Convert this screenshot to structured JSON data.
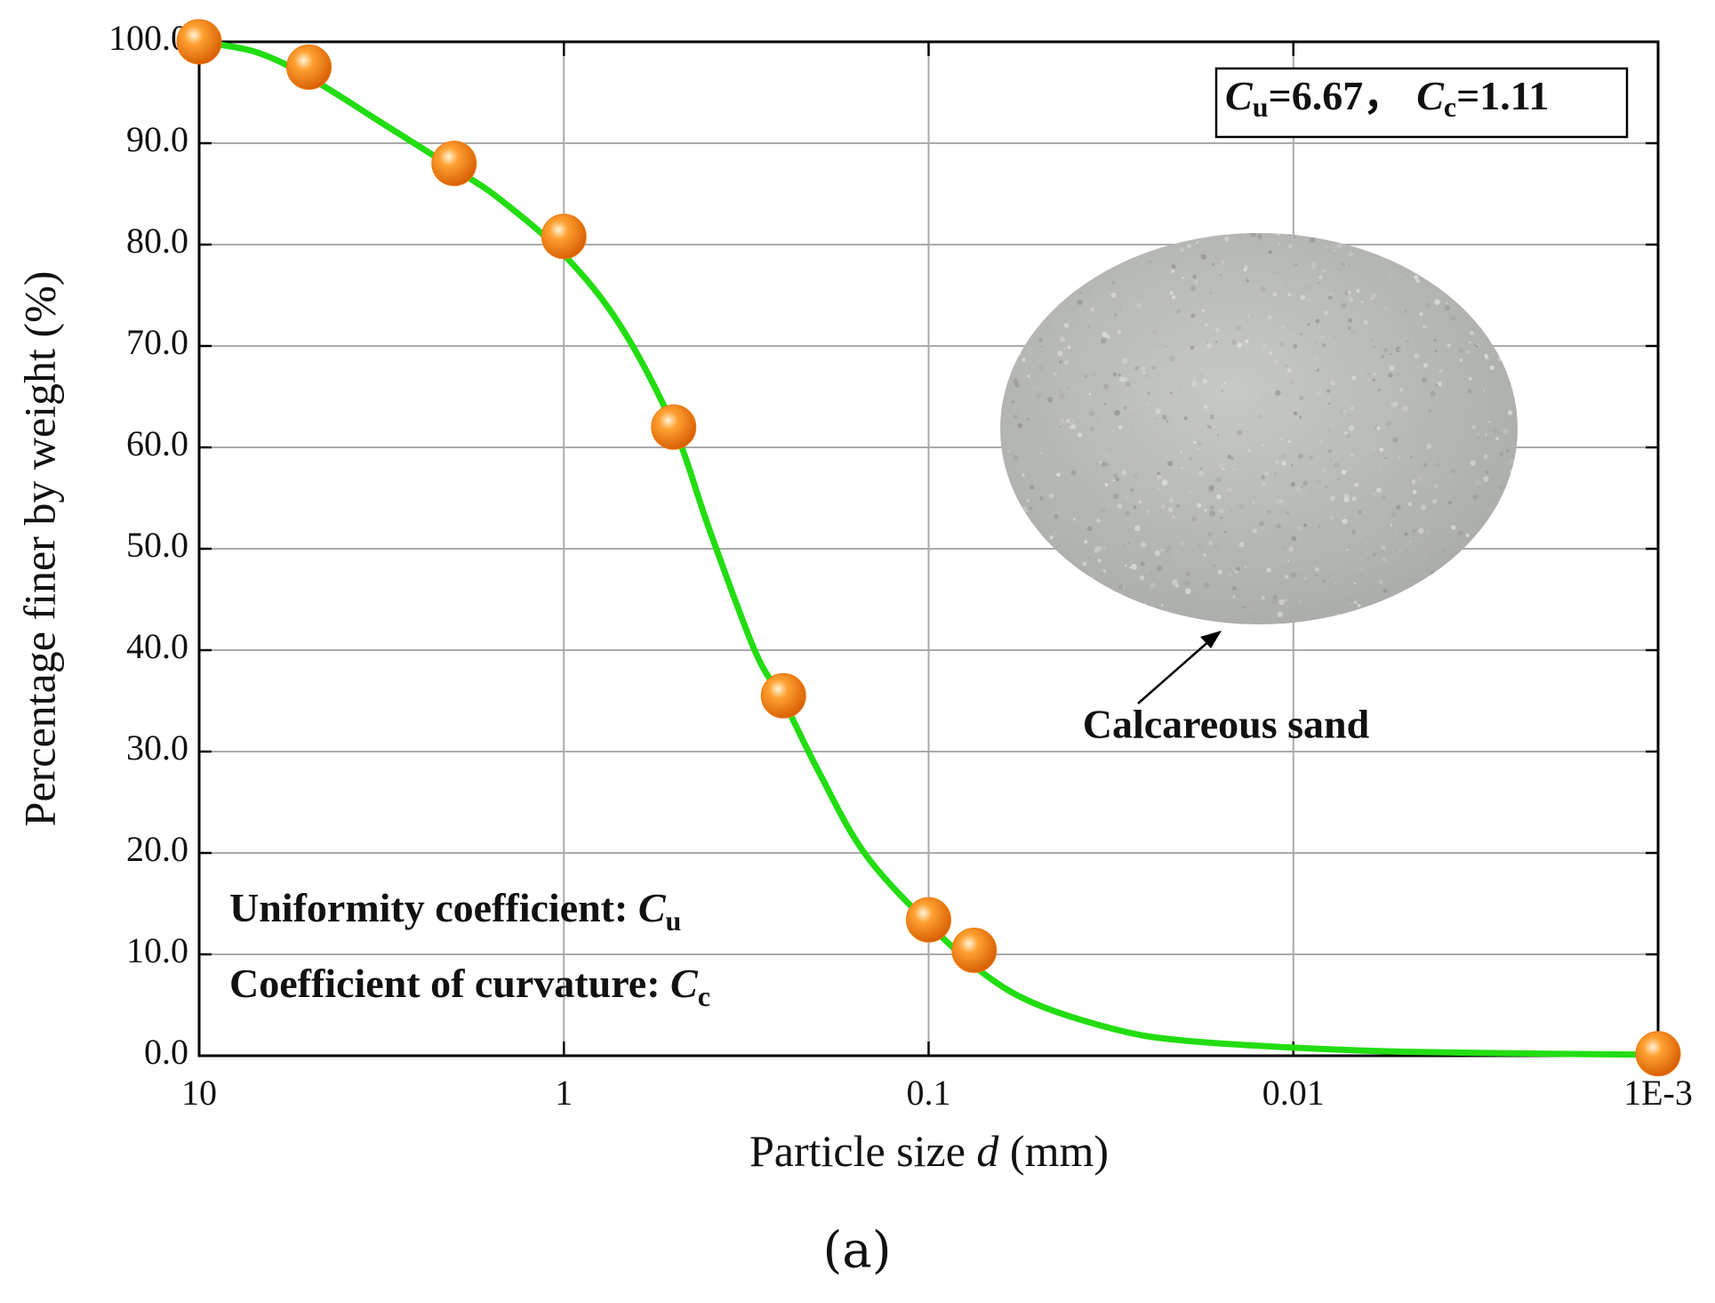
{
  "chart_data": {
    "type": "scatter",
    "xlabel": {
      "text": "Particle size ",
      "italic": "d",
      "unit": " (mm)"
    },
    "ylabel": "Percentage finer by weight  (%)",
    "xscale": "log",
    "xlim": [
      10,
      0.001
    ],
    "xticks": [
      10,
      1,
      0.1,
      0.01,
      {
        "value": 0.001,
        "label": "1E-3"
      }
    ],
    "ylim": [
      0,
      100
    ],
    "yticks": [
      {
        "value": 0,
        "label": "0.0"
      },
      {
        "value": 10,
        "label": "10.0"
      },
      {
        "value": 20,
        "label": "20.0"
      },
      {
        "value": 30,
        "label": "30.0"
      },
      {
        "value": 40,
        "label": "40.0"
      },
      {
        "value": 50,
        "label": "50.0"
      },
      {
        "value": 60,
        "label": "60.0"
      },
      {
        "value": 70,
        "label": "70.0"
      },
      {
        "value": 80,
        "label": "80.0"
      },
      {
        "value": 90,
        "label": "90.0"
      },
      {
        "value": 100,
        "label": "100.0"
      }
    ],
    "grid": true,
    "series": [
      {
        "color": "#f07a10",
        "x": [
          10,
          5,
          2,
          1,
          0.5,
          0.25,
          0.1,
          0.075,
          0.001
        ],
        "values": [
          100,
          97.5,
          88,
          80.8,
          62,
          35.5,
          13.4,
          10.4,
          0.2
        ]
      },
      {
        "color": "#22dd11",
        "x": [
          10,
          7,
          5,
          3,
          2,
          1.5,
          1,
          0.7,
          0.5,
          0.4,
          0.3,
          0.25,
          0.2,
          0.15,
          0.1,
          0.07,
          0.05,
          0.03,
          0.02,
          0.01,
          0.005,
          0.002,
          0.001
        ],
        "values": [
          100,
          99,
          96.5,
          91.5,
          87.5,
          84.5,
          79,
          72,
          62,
          52,
          40,
          35,
          28,
          20,
          13,
          8,
          5,
          2.5,
          1.5,
          0.8,
          0.4,
          0.2,
          0.1
        ]
      }
    ],
    "box_label": [
      {
        "symbol": "C",
        "subscript": "u",
        "text": "=6.67，"
      },
      {
        "symbol": "C",
        "subscript": "c",
        "text": "=1.11"
      }
    ],
    "notes": [
      {
        "text": "Uniformity coefficient: ",
        "symbol": "C",
        "subscript": "u"
      },
      {
        "text": "Coefficient of curvature: ",
        "symbol": "C",
        "subscript": "c"
      }
    ],
    "image_label": "Calcareous sand",
    "caption": "(a)"
  }
}
